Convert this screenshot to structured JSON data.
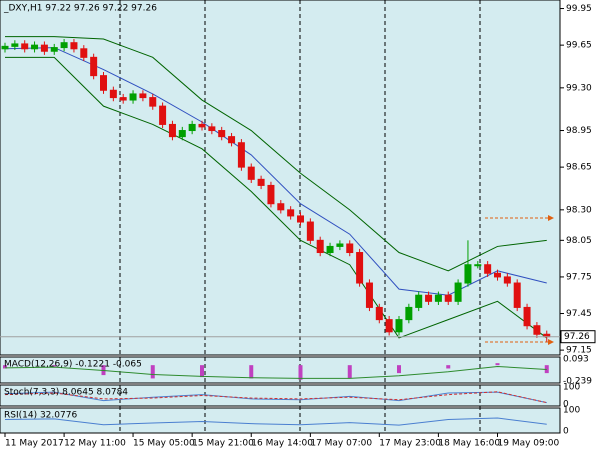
{
  "chart_data": {
    "type": "candlestick",
    "title": "_DXY,H1 97.22 97.26 97.22 97.26",
    "current_price": 97.26,
    "categories": [
      "11 May 2017",
      null,
      null,
      null,
      null,
      null,
      "12 May 11:00",
      null,
      null,
      null,
      null,
      null,
      null,
      "15 May 05:00",
      null,
      null,
      null,
      null,
      null,
      "15 May 21:00",
      null,
      null,
      null,
      null,
      null,
      "16 May 14:00",
      null,
      null,
      null,
      null,
      null,
      "17 May 07:00",
      null,
      null,
      null,
      null,
      null,
      null,
      "17 May 23:00",
      null,
      null,
      null,
      null,
      null,
      "18 May 16:00",
      null,
      null,
      null,
      null,
      null,
      "19 May 09:00",
      null,
      null,
      null,
      null,
      null
    ],
    "open": [
      99.62,
      99.64,
      99.66,
      99.62,
      99.65,
      99.6,
      99.63,
      99.67,
      99.62,
      99.55,
      99.4,
      99.28,
      99.22,
      99.2,
      99.25,
      99.22,
      99.15,
      99.0,
      98.9,
      98.95,
      99.0,
      98.98,
      98.95,
      98.9,
      98.85,
      98.65,
      98.55,
      98.5,
      98.35,
      98.3,
      98.25,
      98.2,
      98.05,
      97.95,
      98.0,
      98.02,
      97.95,
      97.7,
      97.5,
      97.4,
      97.3,
      97.4,
      97.5,
      97.6,
      97.55,
      97.6,
      97.55,
      97.7,
      97.85,
      97.85,
      97.78,
      97.75,
      97.7,
      97.5,
      97.35,
      97.28
    ],
    "high": [
      99.67,
      99.69,
      99.69,
      99.68,
      99.68,
      99.66,
      99.7,
      99.7,
      99.65,
      99.58,
      99.43,
      99.31,
      99.25,
      99.28,
      99.28,
      99.25,
      99.18,
      99.03,
      98.98,
      99.03,
      99.03,
      99.01,
      98.98,
      98.93,
      98.88,
      98.68,
      98.58,
      98.53,
      98.38,
      98.33,
      98.28,
      98.23,
      98.08,
      98.03,
      98.05,
      98.05,
      97.98,
      97.73,
      97.53,
      97.43,
      97.43,
      97.53,
      97.63,
      97.63,
      97.63,
      97.63,
      97.73,
      98.05,
      97.88,
      97.88,
      97.81,
      97.78,
      97.73,
      97.53,
      97.38,
      97.31
    ],
    "low": [
      99.59,
      99.61,
      99.59,
      99.59,
      99.57,
      99.57,
      99.6,
      99.59,
      99.52,
      99.37,
      99.25,
      99.19,
      99.17,
      99.17,
      99.19,
      99.12,
      98.97,
      98.87,
      98.87,
      98.92,
      98.95,
      98.92,
      98.87,
      98.82,
      98.62,
      98.52,
      98.47,
      98.32,
      98.27,
      98.22,
      98.17,
      98.02,
      97.92,
      97.92,
      97.97,
      97.92,
      97.67,
      97.47,
      97.37,
      97.27,
      97.27,
      97.37,
      97.47,
      97.52,
      97.52,
      97.52,
      97.52,
      97.67,
      97.82,
      97.75,
      97.72,
      97.67,
      97.47,
      97.32,
      97.25,
      97.22
    ],
    "close": [
      99.64,
      99.66,
      99.62,
      99.65,
      99.6,
      99.63,
      99.67,
      99.62,
      99.55,
      99.4,
      99.28,
      99.22,
      99.2,
      99.25,
      99.22,
      99.15,
      99.0,
      98.9,
      98.95,
      99.0,
      98.98,
      98.95,
      98.9,
      98.85,
      98.65,
      98.55,
      98.5,
      98.35,
      98.3,
      98.25,
      98.2,
      98.05,
      97.95,
      98.0,
      98.02,
      97.95,
      97.7,
      97.5,
      97.4,
      97.3,
      97.4,
      97.5,
      97.6,
      97.55,
      97.6,
      97.55,
      97.7,
      97.85,
      97.85,
      97.78,
      97.75,
      97.7,
      97.5,
      97.35,
      97.28,
      97.26
    ],
    "up_color": "#00a000",
    "down_color": "#e01010",
    "ylim": [
      97.11,
      100.02
    ],
    "yticks": [
      99.95,
      99.65,
      {
        "value": 99.3,
        "label": "99.30"
      },
      98.95,
      98.65,
      {
        "value": 98.3,
        "label": "98.30"
      },
      98.05,
      97.75,
      97.45,
      97.15
    ],
    "bands": {
      "x": [
        0,
        5,
        10,
        15,
        20,
        25,
        30,
        35,
        40,
        45,
        50,
        55
      ],
      "series": [
        {
          "color": "#006400",
          "values": [
            99.72,
            99.72,
            99.7,
            99.55,
            99.2,
            98.95,
            98.6,
            98.3,
            97.95,
            97.8,
            98.0,
            98.05
          ]
        },
        {
          "color": "#3050c0",
          "values": [
            99.62,
            99.63,
            99.45,
            99.25,
            99.02,
            98.75,
            98.35,
            98.1,
            97.65,
            97.6,
            97.8,
            97.7
          ]
        },
        {
          "color": "#006400",
          "values": [
            99.55,
            99.55,
            99.15,
            99.0,
            98.8,
            98.45,
            98.05,
            97.85,
            97.25,
            97.4,
            97.55,
            97.25
          ]
        }
      ]
    },
    "indicators": [
      {
        "label": "MACD(12,26,9) -0.1221 -0.065",
        "ylim": [
          -0.239,
          0.093
        ],
        "yticks": [
          0.093,
          -0.239
        ],
        "x": [
          0,
          5,
          10,
          15,
          20,
          25,
          30,
          35,
          40,
          45,
          50,
          55
        ],
        "series": [
          {
            "kind": "histogram",
            "color": "#c040c0",
            "values": [
              -0.05,
              -0.02,
              -0.15,
              -0.2,
              -0.18,
              -0.2,
              -0.22,
              -0.2,
              -0.12,
              -0.05,
              0.03,
              -0.12
            ]
          },
          {
            "kind": "line",
            "color": "#2e8b2e",
            "values": [
              -0.04,
              -0.03,
              -0.08,
              -0.14,
              -0.17,
              -0.19,
              -0.2,
              -0.2,
              -0.16,
              -0.1,
              -0.02,
              -0.065
            ]
          }
        ]
      },
      {
        "label": "Stoch(7,3,3) 8.0645 8.0784",
        "ylim": [
          0,
          100
        ],
        "yticks": [
          0,
          100
        ],
        "x": [
          0,
          5,
          10,
          15,
          20,
          25,
          30,
          35,
          40,
          45,
          50,
          55
        ],
        "series": [
          {
            "kind": "line",
            "color": "#4a7fd0",
            "values": [
              60,
              70,
              20,
              40,
              55,
              30,
              25,
              45,
              20,
              65,
              70,
              8.0645
            ]
          },
          {
            "kind": "line",
            "color": "#d03030",
            "values": [
              55,
              65,
              30,
              35,
              50,
              35,
              30,
              40,
              25,
              55,
              72,
              8.0784
            ]
          }
        ]
      },
      {
        "label": "RSI(14) 32.0776",
        "ylim": [
          0,
          100
        ],
        "yticks": [
          0,
          100
        ],
        "x": [
          0,
          5,
          10,
          15,
          20,
          25,
          30,
          35,
          40,
          45,
          50,
          55
        ],
        "series": [
          {
            "kind": "line",
            "color": "#4a7fd0",
            "values": [
              55,
              58,
              30,
              38,
              45,
              35,
              30,
              40,
              28,
              55,
              62,
              32.0776
            ]
          }
        ]
      }
    ]
  }
}
